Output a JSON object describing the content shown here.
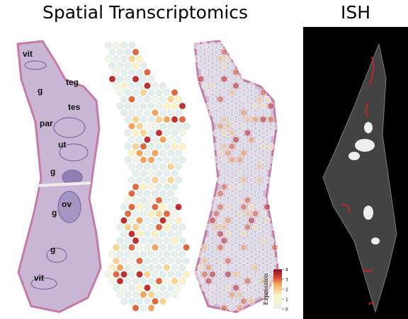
{
  "header": {
    "title": "Spatial Transcriptomics",
    "ish_title": "ISH"
  },
  "annotations": [
    "vit",
    "g",
    "teg",
    "tes",
    "par",
    "ut",
    "g",
    "ov",
    "g",
    "g",
    "vit"
  ],
  "colorbar": {
    "label": "Expression",
    "range": [
      0,
      4
    ],
    "ticks": [
      0,
      1,
      2,
      3,
      4
    ]
  }
}
